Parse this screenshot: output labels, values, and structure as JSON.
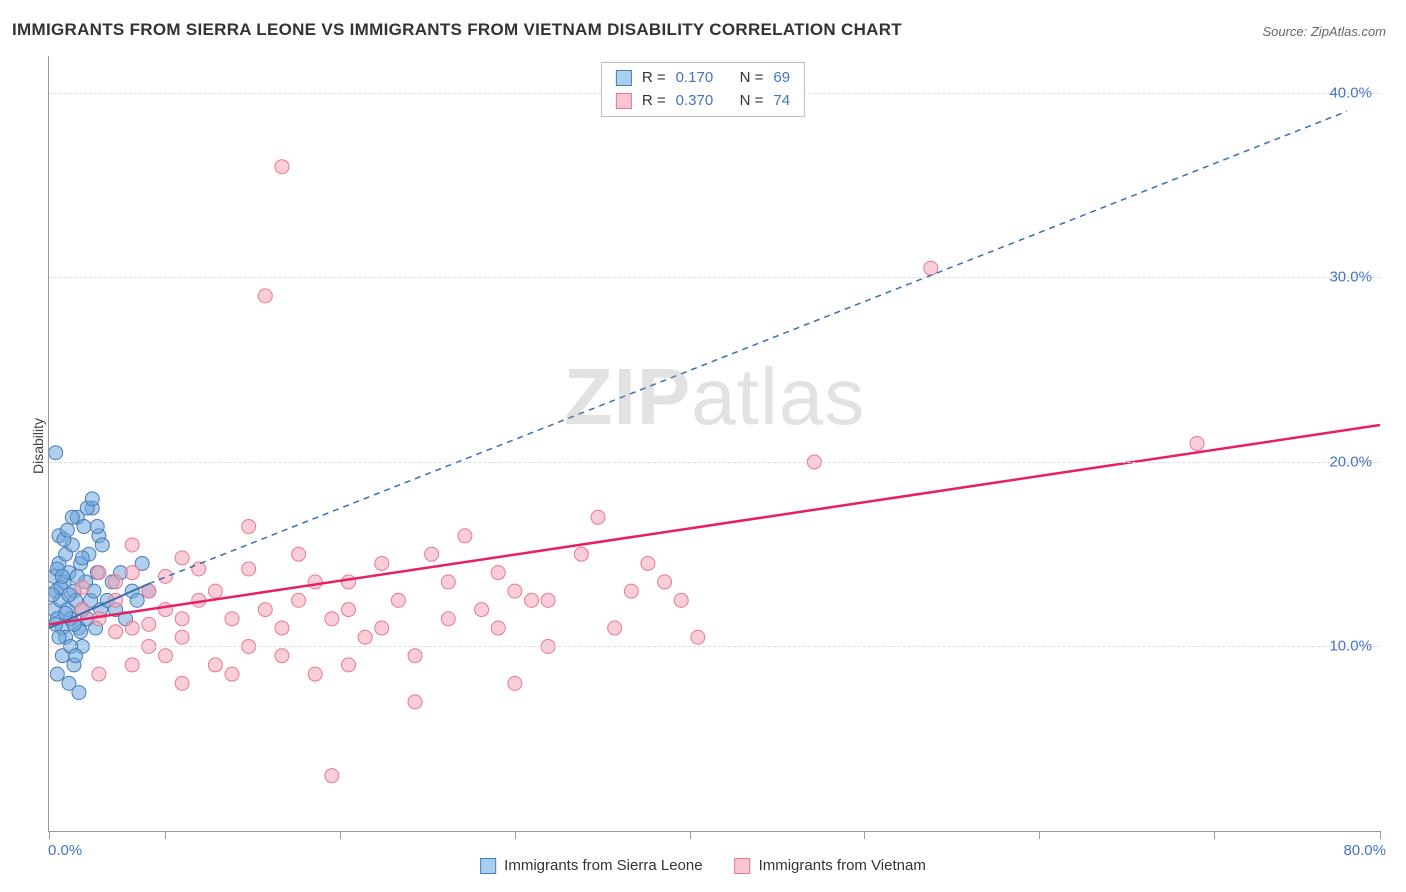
{
  "title": "IMMIGRANTS FROM SIERRA LEONE VS IMMIGRANTS FROM VIETNAM DISABILITY CORRELATION CHART",
  "source": "Source: ZipAtlas.com",
  "watermark": {
    "bold": "ZIP",
    "rest": "atlas"
  },
  "ylabel": "Disability",
  "chart": {
    "type": "scatter",
    "xlim": [
      0,
      80
    ],
    "ylim": [
      0,
      42
    ],
    "x_origin_label": "0.0%",
    "x_max_label": "80.0%",
    "x_tick_positions_pct": [
      0,
      7,
      17.5,
      28,
      38.5,
      49,
      59.5,
      70,
      80
    ],
    "y_gridlines": [
      {
        "value": 10,
        "label": "10.0%"
      },
      {
        "value": 20,
        "label": "20.0%"
      },
      {
        "value": 30,
        "label": "30.0%"
      },
      {
        "value": 40,
        "label": "40.0%"
      }
    ],
    "background_color": "#ffffff",
    "grid_color": "#dddddd",
    "axis_color": "#999999",
    "tick_label_color": "#4472c4",
    "marker_radius": 7,
    "marker_opacity": 0.55,
    "series": [
      {
        "name": "Immigrants from Sierra Leone",
        "color": "#6fa8dc",
        "border": "#4a7db8",
        "R": "0.170",
        "N": "69",
        "trend": {
          "solid": {
            "x1": 0,
            "y1": 11.0,
            "x2": 6,
            "y2": 13.4
          },
          "dashed": {
            "x1": 6,
            "y1": 13.4,
            "x2": 78,
            "y2": 39.0
          },
          "stroke": "#3a6fb0",
          "width": 2,
          "dash": "6 5"
        },
        "points": [
          [
            0.3,
            12
          ],
          [
            0.4,
            13
          ],
          [
            0.5,
            11.5
          ],
          [
            0.6,
            14.5
          ],
          [
            0.7,
            12.5
          ],
          [
            0.8,
            11
          ],
          [
            0.9,
            13.5
          ],
          [
            1.0,
            15
          ],
          [
            1.1,
            12
          ],
          [
            1.2,
            14
          ],
          [
            1.3,
            11.5
          ],
          [
            1.4,
            15.5
          ],
          [
            1.5,
            13
          ],
          [
            1.6,
            12.5
          ],
          [
            1.7,
            17
          ],
          [
            1.8,
            11
          ],
          [
            1.9,
            14.5
          ],
          [
            2.0,
            12
          ],
          [
            2.1,
            16.5
          ],
          [
            2.2,
            13.5
          ],
          [
            2.3,
            11.5
          ],
          [
            2.4,
            15
          ],
          [
            2.5,
            12.5
          ],
          [
            2.6,
            17.5
          ],
          [
            2.7,
            13
          ],
          [
            2.8,
            11
          ],
          [
            2.9,
            14
          ],
          [
            3.0,
            16
          ],
          [
            3.1,
            12
          ],
          [
            3.2,
            15.5
          ],
          [
            0.5,
            8.5
          ],
          [
            0.8,
            9.5
          ],
          [
            1.2,
            8
          ],
          [
            1.5,
            9
          ],
          [
            1.8,
            7.5
          ],
          [
            2.0,
            10
          ],
          [
            0.4,
            20.5
          ],
          [
            2.3,
            17.5
          ],
          [
            2.6,
            18
          ],
          [
            2.9,
            16.5
          ],
          [
            3.5,
            12.5
          ],
          [
            3.8,
            13.5
          ],
          [
            4.0,
            12
          ],
          [
            4.3,
            14
          ],
          [
            4.6,
            11.5
          ],
          [
            5.0,
            13
          ],
          [
            5.3,
            12.5
          ],
          [
            5.6,
            14.5
          ],
          [
            6.0,
            13
          ],
          [
            1.0,
            10.5
          ],
          [
            1.3,
            10
          ],
          [
            1.6,
            9.5
          ],
          [
            1.9,
            10.8
          ],
          [
            0.6,
            16
          ],
          [
            0.9,
            15.8
          ],
          [
            1.1,
            16.3
          ],
          [
            1.4,
            17
          ],
          [
            0.3,
            13.8
          ],
          [
            0.5,
            14.2
          ],
          [
            0.7,
            13.2
          ],
          [
            0.2,
            12.8
          ],
          [
            0.4,
            11.2
          ],
          [
            0.6,
            10.5
          ],
          [
            0.8,
            13.8
          ],
          [
            1.0,
            11.8
          ],
          [
            1.2,
            12.8
          ],
          [
            1.5,
            11.2
          ],
          [
            1.7,
            13.8
          ],
          [
            2.0,
            14.8
          ]
        ]
      },
      {
        "name": "Immigrants from Vietnam",
        "color": "#f4a6b8",
        "border": "#e67a94",
        "R": "0.370",
        "N": "74",
        "trend": {
          "solid": {
            "x1": 0,
            "y1": 11.2,
            "x2": 80,
            "y2": 22.0
          },
          "stroke": "#e91e63",
          "width": 2.5
        },
        "points": [
          [
            2,
            12
          ],
          [
            3,
            11.5
          ],
          [
            4,
            12.5
          ],
          [
            5,
            11
          ],
          [
            6,
            13
          ],
          [
            7,
            12
          ],
          [
            8,
            11.5
          ],
          [
            9,
            12.5
          ],
          [
            10,
            13
          ],
          [
            11,
            11.5
          ],
          [
            12,
            16.5
          ],
          [
            13,
            12
          ],
          [
            14,
            11
          ],
          [
            15,
            12.5
          ],
          [
            16,
            13.5
          ],
          [
            17,
            11.5
          ],
          [
            18,
            12
          ],
          [
            19,
            10.5
          ],
          [
            20,
            11
          ],
          [
            21,
            12.5
          ],
          [
            22,
            9.5
          ],
          [
            23,
            15
          ],
          [
            24,
            13.5
          ],
          [
            25,
            16
          ],
          [
            27,
            14
          ],
          [
            28,
            13
          ],
          [
            29,
            12.5
          ],
          [
            30,
            10
          ],
          [
            32,
            15
          ],
          [
            33,
            17
          ],
          [
            35,
            13
          ],
          [
            36,
            14.5
          ],
          [
            38,
            12.5
          ],
          [
            39,
            10.5
          ],
          [
            13,
            29
          ],
          [
            14,
            36
          ],
          [
            17,
            3
          ],
          [
            22,
            7
          ],
          [
            27,
            11
          ],
          [
            28,
            8
          ],
          [
            6,
            10
          ],
          [
            7,
            9.5
          ],
          [
            8,
            10.5
          ],
          [
            10,
            9
          ],
          [
            12,
            10
          ],
          [
            14,
            9.5
          ],
          [
            16,
            8.5
          ],
          [
            18,
            9
          ],
          [
            4,
            13.5
          ],
          [
            5,
            14
          ],
          [
            7,
            13.8
          ],
          [
            9,
            14.2
          ],
          [
            46,
            20
          ],
          [
            53,
            30.5
          ],
          [
            69,
            21
          ],
          [
            3,
            8.5
          ],
          [
            5,
            9
          ],
          [
            8,
            8
          ],
          [
            11,
            8.5
          ],
          [
            6,
            11.2
          ],
          [
            4,
            10.8
          ],
          [
            2,
            13.2
          ],
          [
            3,
            14
          ],
          [
            5,
            15.5
          ],
          [
            8,
            14.8
          ],
          [
            12,
            14.2
          ],
          [
            15,
            15
          ],
          [
            18,
            13.5
          ],
          [
            20,
            14.5
          ],
          [
            24,
            11.5
          ],
          [
            26,
            12
          ],
          [
            30,
            12.5
          ],
          [
            34,
            11
          ],
          [
            37,
            13.5
          ]
        ]
      }
    ]
  },
  "legend_bottom": [
    {
      "label": "Immigrants from Sierra Leone",
      "fill": "#a8cef0",
      "border": "#4a7db8"
    },
    {
      "label": "Immigrants from Vietnam",
      "fill": "#f8c5d1",
      "border": "#e67a94"
    }
  ],
  "legend_top": {
    "rows": [
      {
        "fill": "#a8cef0",
        "border": "#4a7db8",
        "R": "0.170",
        "N": "69"
      },
      {
        "fill": "#f8c5d1",
        "border": "#e67a94",
        "R": "0.370",
        "N": "74"
      }
    ]
  }
}
